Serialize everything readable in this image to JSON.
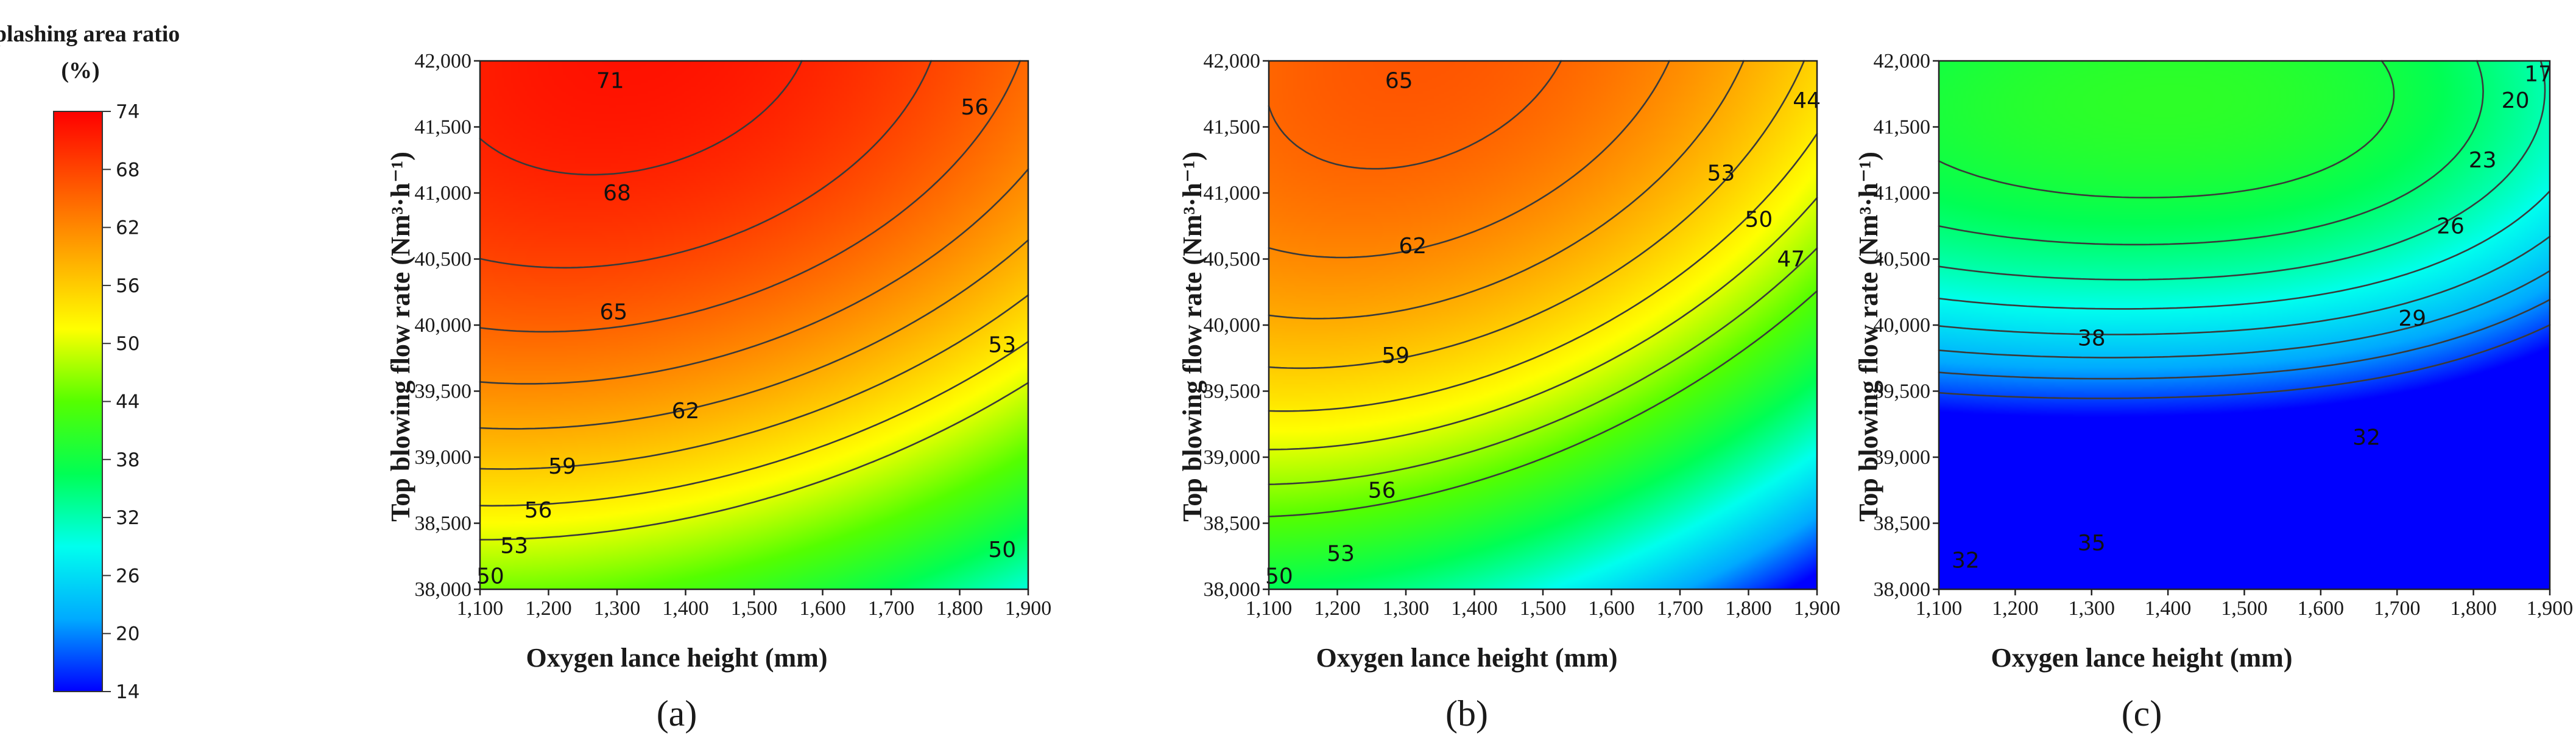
{
  "colorbar": {
    "title_line1": "Splashing area ratio",
    "title_line2": "(%)",
    "min": 14,
    "max": 74,
    "ticks": [
      74,
      68,
      62,
      56,
      50,
      44,
      38,
      32,
      26,
      20,
      14
    ],
    "colors": [
      "#0000ff",
      "#00aaff",
      "#00ffee",
      "#00ff55",
      "#55ff00",
      "#ffff00",
      "#ffaa00",
      "#ff5500",
      "#ff0000"
    ]
  },
  "chart_data": [
    {
      "type": "contour",
      "panel_label": "(a)",
      "xlabel": "Oxygen lance height (mm)",
      "ylabel": "Top blowing flow rate (Nm³·h⁻¹)",
      "xlim": [
        1100,
        1900
      ],
      "ylim": [
        38000,
        42000
      ],
      "xticks": [
        1100,
        1200,
        1300,
        1400,
        1500,
        1600,
        1700,
        1800,
        1900
      ],
      "yticks": [
        38000,
        38500,
        39000,
        39500,
        40000,
        40500,
        41000,
        41500,
        42000
      ],
      "xtick_labels": [
        "1,100",
        "1,200",
        "1,300",
        "1,400",
        "1,500",
        "1,600",
        "1,700",
        "1,800",
        "1,900"
      ],
      "ytick_labels": [
        "38,000",
        "38,500",
        "39,000",
        "39,500",
        "40,000",
        "40,500",
        "41,000",
        "41,500",
        "42,000"
      ],
      "model": {
        "a": 72.5,
        "b": 4.6,
        "c": 6.8,
        "x0": 1320,
        "sx": 450,
        "y0": 42100,
        "sy": 2000,
        "d": 2.4
      },
      "levels": [
        50,
        53,
        56,
        59,
        62,
        65,
        68,
        71
      ],
      "contour_labels": [
        {
          "text": "71",
          "x": 1290,
          "y": 41850
        },
        {
          "text": "68",
          "x": 1300,
          "y": 41000
        },
        {
          "text": "65",
          "x": 1295,
          "y": 40100
        },
        {
          "text": "62",
          "x": 1400,
          "y": 39350
        },
        {
          "text": "59",
          "x": 1220,
          "y": 38930
        },
        {
          "text": "56",
          "x": 1185,
          "y": 38600
        },
        {
          "text": "53",
          "x": 1150,
          "y": 38330
        },
        {
          "text": "50",
          "x": 1115,
          "y": 38100
        },
        {
          "text": "56",
          "x": 1822,
          "y": 41650
        },
        {
          "text": "53",
          "x": 1862,
          "y": 39850
        },
        {
          "text": "50",
          "x": 1862,
          "y": 38300
        }
      ]
    },
    {
      "type": "contour",
      "panel_label": "(b)",
      "xlabel": "Oxygen lance height (mm)",
      "ylabel": "Top blowing flow rate (Nm³·h⁻¹)",
      "xlim": [
        1100,
        1900
      ],
      "ylim": [
        38000,
        42000
      ],
      "xticks": [
        1100,
        1200,
        1300,
        1400,
        1500,
        1600,
        1700,
        1800,
        1900
      ],
      "yticks": [
        38000,
        38500,
        39000,
        39500,
        40000,
        40500,
        41000,
        41500,
        42000
      ],
      "xtick_labels": [
        "1,100",
        "1,200",
        "1,300",
        "1,400",
        "1,500",
        "1,600",
        "1,700",
        "1,800",
        "1,900"
      ],
      "ytick_labels": [
        "38,000",
        "38,500",
        "39,000",
        "39,500",
        "40,000",
        "40,500",
        "41,000",
        "41,500",
        "42,000"
      ],
      "model": {
        "a": 66.5,
        "b": 6.0,
        "c": 7.8,
        "x0": 1320,
        "sx": 430,
        "y0": 42100,
        "sy": 2000,
        "d": 4.0
      },
      "levels": [
        44,
        47,
        50,
        53,
        56,
        59,
        62,
        65
      ],
      "contour_labels": [
        {
          "text": "65",
          "x": 1290,
          "y": 41850
        },
        {
          "text": "62",
          "x": 1310,
          "y": 40600
        },
        {
          "text": "59",
          "x": 1285,
          "y": 39770
        },
        {
          "text": "56",
          "x": 1265,
          "y": 38750
        },
        {
          "text": "53",
          "x": 1205,
          "y": 38270
        },
        {
          "text": "50",
          "x": 1115,
          "y": 38100
        },
        {
          "text": "53",
          "x": 1760,
          "y": 41150
        },
        {
          "text": "50",
          "x": 1815,
          "y": 40800
        },
        {
          "text": "47",
          "x": 1862,
          "y": 40500
        },
        {
          "text": "44",
          "x": 1885,
          "y": 41700
        }
      ]
    },
    {
      "type": "contour",
      "panel_label": "(c)",
      "xlabel": "Oxygen lance height (mm)",
      "ylabel": "Top blowing flow rate (Nm³·h⁻¹)",
      "xlim": [
        1100,
        1900
      ],
      "ylim": [
        38000,
        42000
      ],
      "xticks": [
        1100,
        1200,
        1300,
        1400,
        1500,
        1600,
        1700,
        1800,
        1900
      ],
      "yticks": [
        38000,
        38500,
        39000,
        39500,
        40000,
        40500,
        41000,
        41500,
        42000
      ],
      "xtick_labels": [
        "1,100",
        "1,200",
        "1,300",
        "1,400",
        "1,500",
        "1,600",
        "1,700",
        "1,800",
        "1,900"
      ],
      "ytick_labels": [
        "38,000",
        "38,500",
        "39,000",
        "39,500",
        "40,000",
        "40,500",
        "41,000",
        "41,500",
        "42,000"
      ],
      "model": {
        "a": 40.5,
        "b": 4.8,
        "c": 18.6,
        "x0": 1400,
        "sx": 500,
        "y0": 41700,
        "sy": 2000,
        "d": 1.5,
        "e": 4.0
      },
      "levels": [
        17,
        20,
        23,
        26,
        29,
        32,
        35,
        38
      ],
      "contour_labels": [
        {
          "text": "38",
          "x": 1300,
          "y": 39900
        },
        {
          "text": "35",
          "x": 1300,
          "y": 38350
        },
        {
          "text": "32",
          "x": 1135,
          "y": 38220
        },
        {
          "text": "32",
          "x": 1660,
          "y": 39150
        },
        {
          "text": "29",
          "x": 1720,
          "y": 40050
        },
        {
          "text": "26",
          "x": 1770,
          "y": 40750
        },
        {
          "text": "23",
          "x": 1812,
          "y": 41250
        },
        {
          "text": "20",
          "x": 1855,
          "y": 41700
        },
        {
          "text": "17",
          "x": 1885,
          "y": 41900
        }
      ]
    }
  ]
}
